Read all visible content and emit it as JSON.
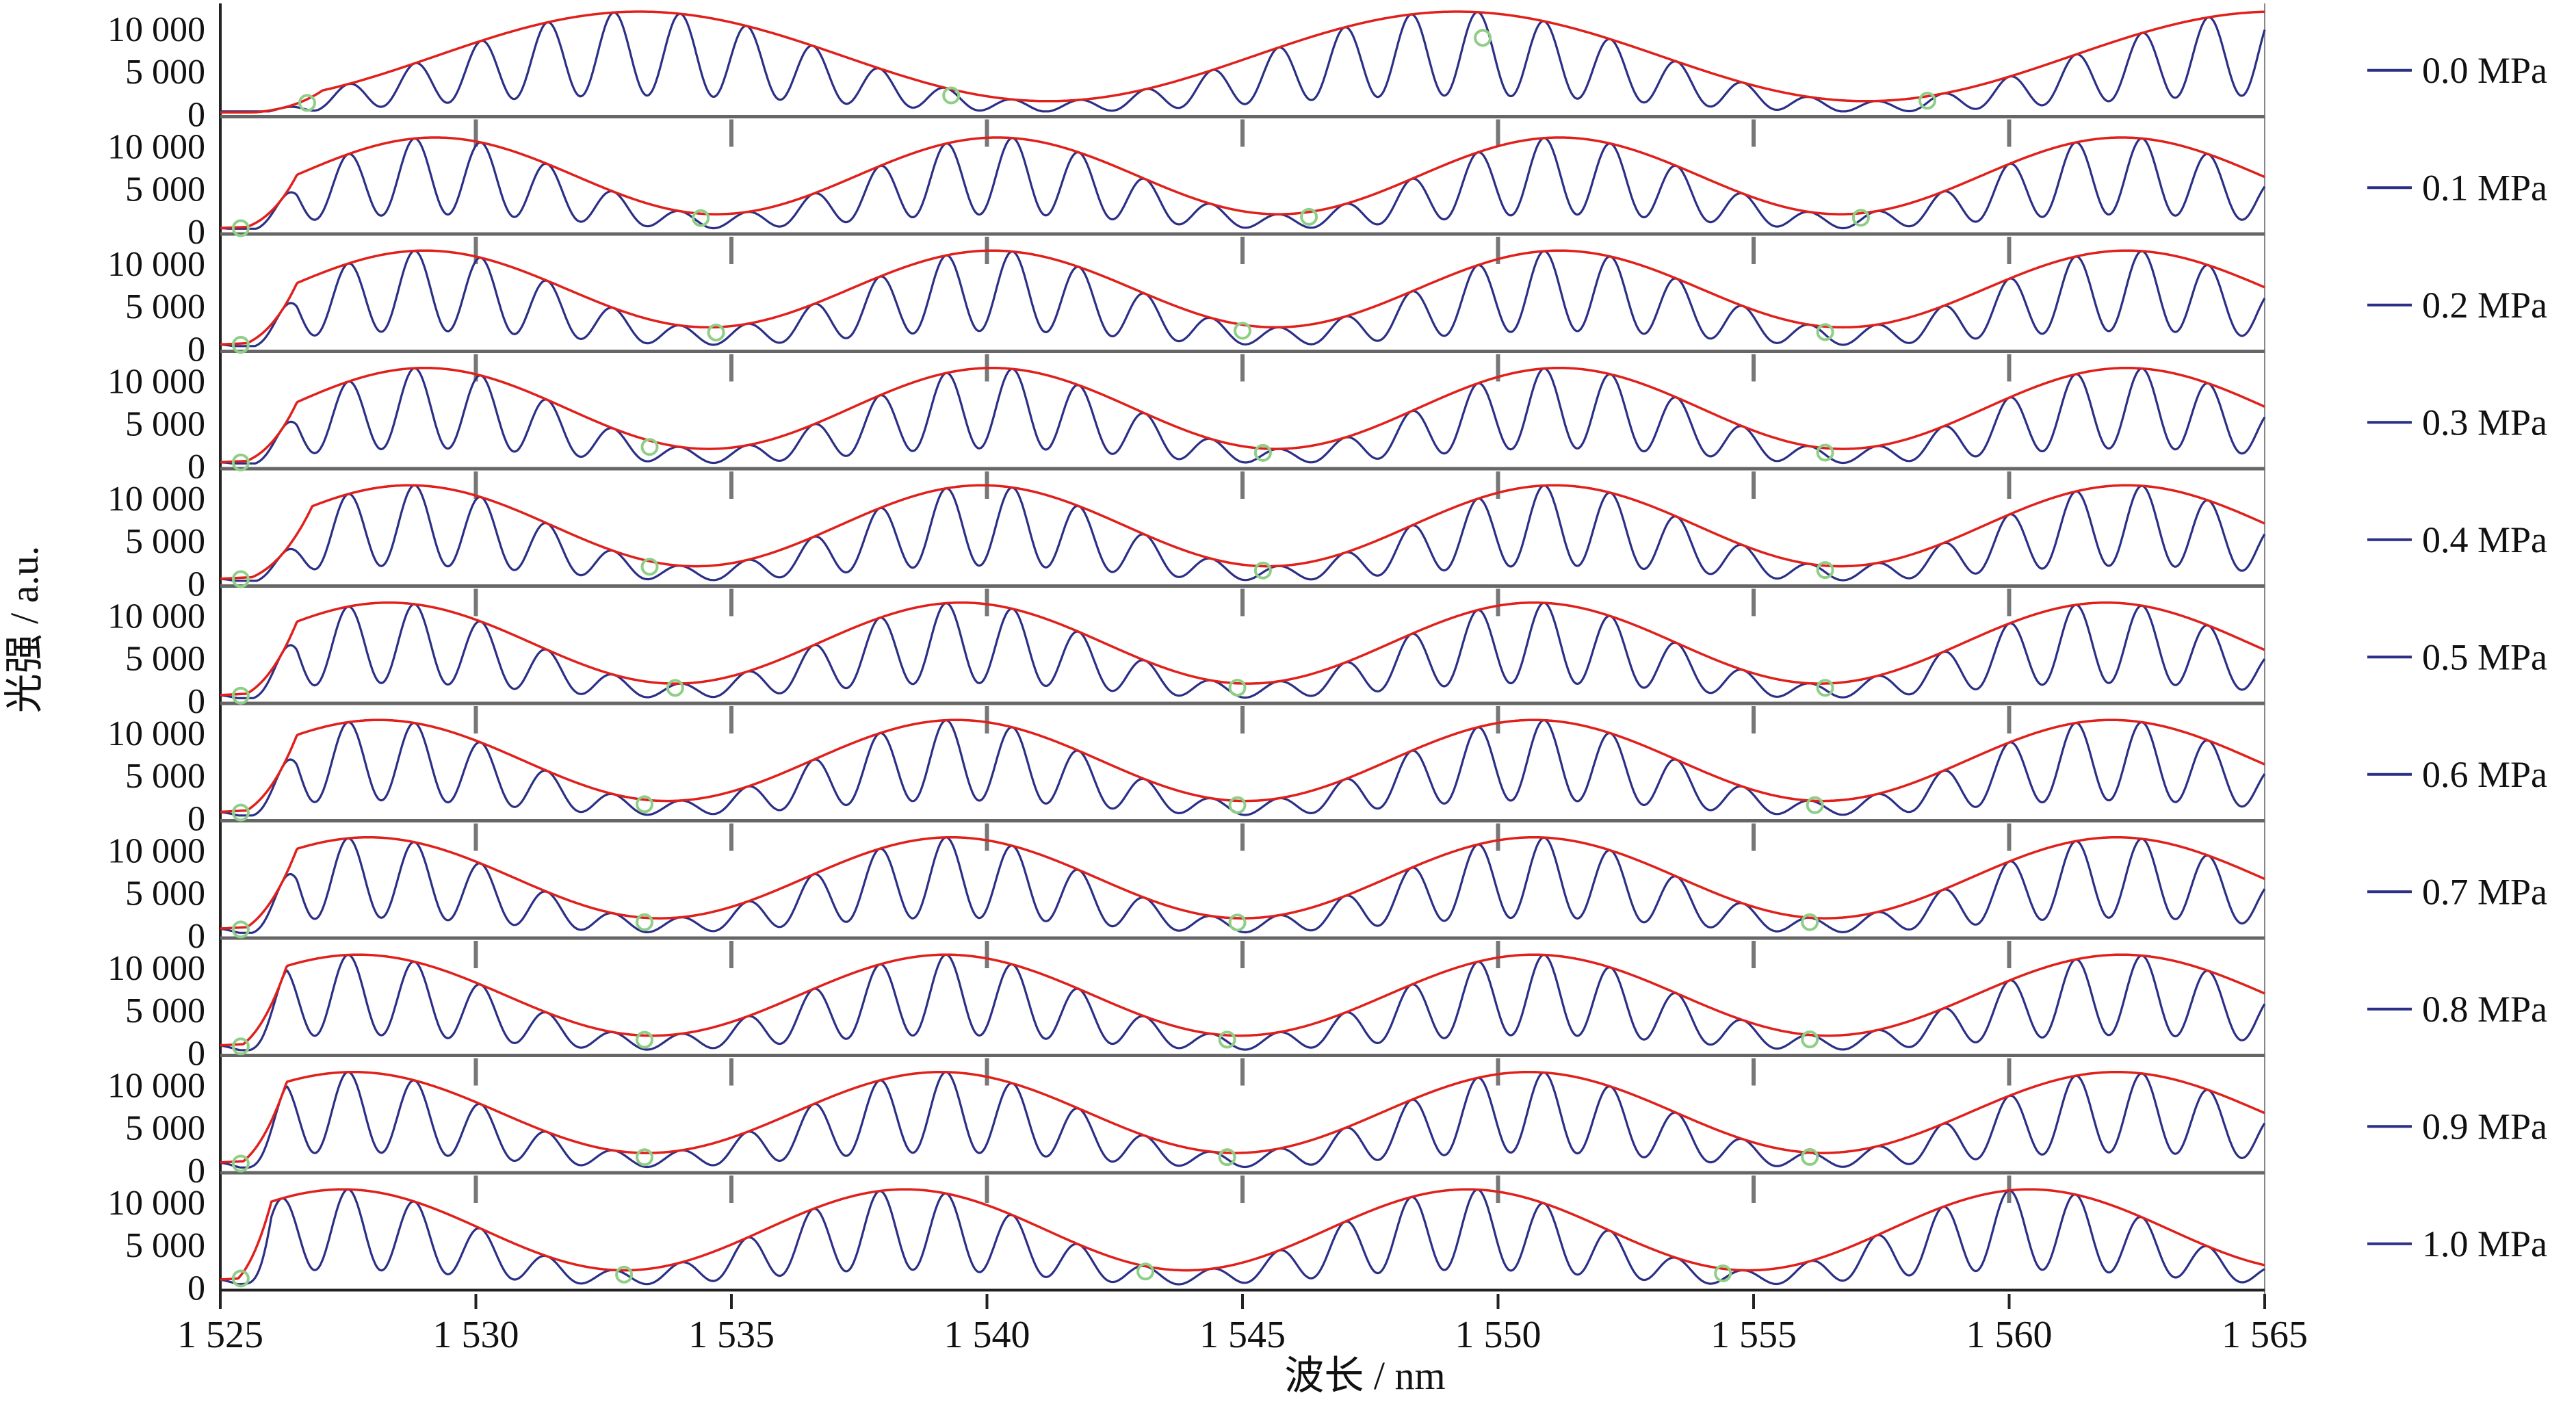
{
  "chart_data": {
    "type": "line",
    "xlabel": "波长 / nm",
    "ylabel": "光强 / a.u.",
    "xlim": [
      1525,
      1565
    ],
    "ylim": [
      0,
      12000
    ],
    "x_ticks": [
      1525,
      1530,
      1535,
      1540,
      1545,
      1550,
      1555,
      1560,
      1565
    ],
    "x_tick_labels": [
      "1 525",
      "1 530",
      "1 535",
      "1 540",
      "1 545",
      "1 550",
      "1 555",
      "1 560",
      "1 565"
    ],
    "y_ticks": [
      0,
      5000,
      10000
    ],
    "y_tick_labels": [
      "0",
      "5 000",
      "10 000"
    ],
    "fringe_period_nm": 1.3,
    "colors": {
      "spectrum": "#2b2f86",
      "envelope": "#e0201b",
      "marker": "#8fce86",
      "frame": "#555555"
    },
    "panels": [
      {
        "name": "0.0 MPa",
        "legend": "0.0 MPa",
        "env_min": 1500,
        "env_max": 12000,
        "env_period": 16.0,
        "env_phase": 1533.2,
        "start": 1527.0,
        "minima": [
          1526.7,
          1539.3,
          1549.7,
          1558.4
        ]
      },
      {
        "name": "0.1 MPa",
        "legend": "0.1 MPa",
        "env_min": 2000,
        "env_max": 11000,
        "env_period": 11.0,
        "env_phase": 1529.2,
        "start": 1526.5,
        "minima": [
          1525.4,
          1534.4,
          1546.3,
          1557.1
        ]
      },
      {
        "name": "0.2 MPa",
        "legend": "0.2 MPa",
        "env_min": 2500,
        "env_max": 11500,
        "env_period": 11.1,
        "env_phase": 1529.0,
        "start": 1526.5,
        "minima": [
          1525.4,
          1534.7,
          1545.0,
          1556.4
        ]
      },
      {
        "name": "0.3 MPa",
        "legend": "0.3 MPa",
        "env_min": 2000,
        "env_max": 11500,
        "env_period": 11.1,
        "env_phase": 1529.0,
        "start": 1526.5,
        "minima": [
          1525.4,
          1533.4,
          1545.4,
          1556.4
        ]
      },
      {
        "name": "0.4 MPa",
        "legend": "0.4 MPa",
        "env_min": 2000,
        "env_max": 11500,
        "env_period": 11.2,
        "env_phase": 1528.7,
        "start": 1526.8,
        "minima": [
          1525.4,
          1533.4,
          1545.4,
          1556.4
        ]
      },
      {
        "name": "0.5 MPa",
        "legend": "0.5 MPa",
        "env_min": 2000,
        "env_max": 11500,
        "env_period": 11.2,
        "env_phase": 1528.3,
        "start": 1526.5,
        "minima": [
          1525.4,
          1533.9,
          1544.9,
          1556.4
        ]
      },
      {
        "name": "0.6 MPa",
        "legend": "0.6 MPa",
        "env_min": 2000,
        "env_max": 11500,
        "env_period": 11.3,
        "env_phase": 1528.1,
        "start": 1526.5,
        "minima": [
          1525.4,
          1533.3,
          1544.9,
          1556.2
        ]
      },
      {
        "name": "0.7 MPa",
        "legend": "0.7 MPa",
        "env_min": 2000,
        "env_max": 11500,
        "env_period": 11.4,
        "env_phase": 1527.9,
        "start": 1526.5,
        "minima": [
          1525.4,
          1533.3,
          1544.9,
          1556.1
        ]
      },
      {
        "name": "0.8 MPa",
        "legend": "0.8 MPa",
        "env_min": 2000,
        "env_max": 11500,
        "env_period": 11.5,
        "env_phase": 1527.7,
        "start": 1526.3,
        "minima": [
          1525.4,
          1533.3,
          1544.7,
          1556.1
        ]
      },
      {
        "name": "0.9 MPa",
        "legend": "0.9 MPa",
        "env_min": 2000,
        "env_max": 11500,
        "env_period": 11.5,
        "env_phase": 1527.6,
        "start": 1526.3,
        "minima": [
          1525.4,
          1533.3,
          1544.7,
          1556.1
        ]
      },
      {
        "name": "1.0 MPa",
        "legend": "1.0 MPa",
        "env_min": 2000,
        "env_max": 11500,
        "env_period": 11.0,
        "env_phase": 1527.4,
        "start": 1526.0,
        "minima": [
          1525.4,
          1532.9,
          1543.1,
          1554.4
        ]
      }
    ]
  }
}
